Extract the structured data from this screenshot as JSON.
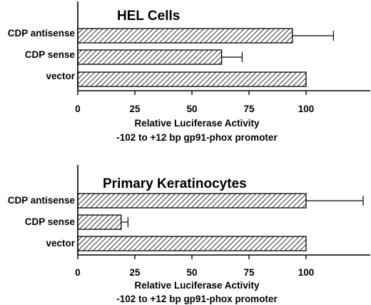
{
  "chart_data": [
    {
      "type": "bar",
      "orientation": "horizontal",
      "title": "HEL Cells",
      "categories": [
        "CDP antisense",
        "CDP sense",
        "vector"
      ],
      "values": [
        94,
        63,
        100
      ],
      "error": [
        18,
        9,
        null
      ],
      "xlabel": "Relative Luciferase Activity",
      "xlabel2": "-102 to +12 bp gp91-phox promoter",
      "xlim": [
        0,
        125
      ],
      "xticks": [
        "0",
        "25",
        "50",
        "75",
        "100"
      ],
      "bar_fill": "diagonal-hatch",
      "color": "#000000"
    },
    {
      "type": "bar",
      "orientation": "horizontal",
      "title": "Primary Keratinocytes",
      "categories": [
        "CDP antisense",
        "CDP sense",
        "vector"
      ],
      "values": [
        100,
        19,
        100
      ],
      "error": [
        25,
        3,
        null
      ],
      "xlabel": "Relative Luciferase Activity",
      "xlabel2": "-102 to +12 bp gp91-phox promoter",
      "xlim": [
        0,
        125
      ],
      "xticks": [
        "0",
        "25",
        "50",
        "75",
        "100"
      ],
      "bar_fill": "diagonal-hatch",
      "color": "#000000"
    }
  ]
}
